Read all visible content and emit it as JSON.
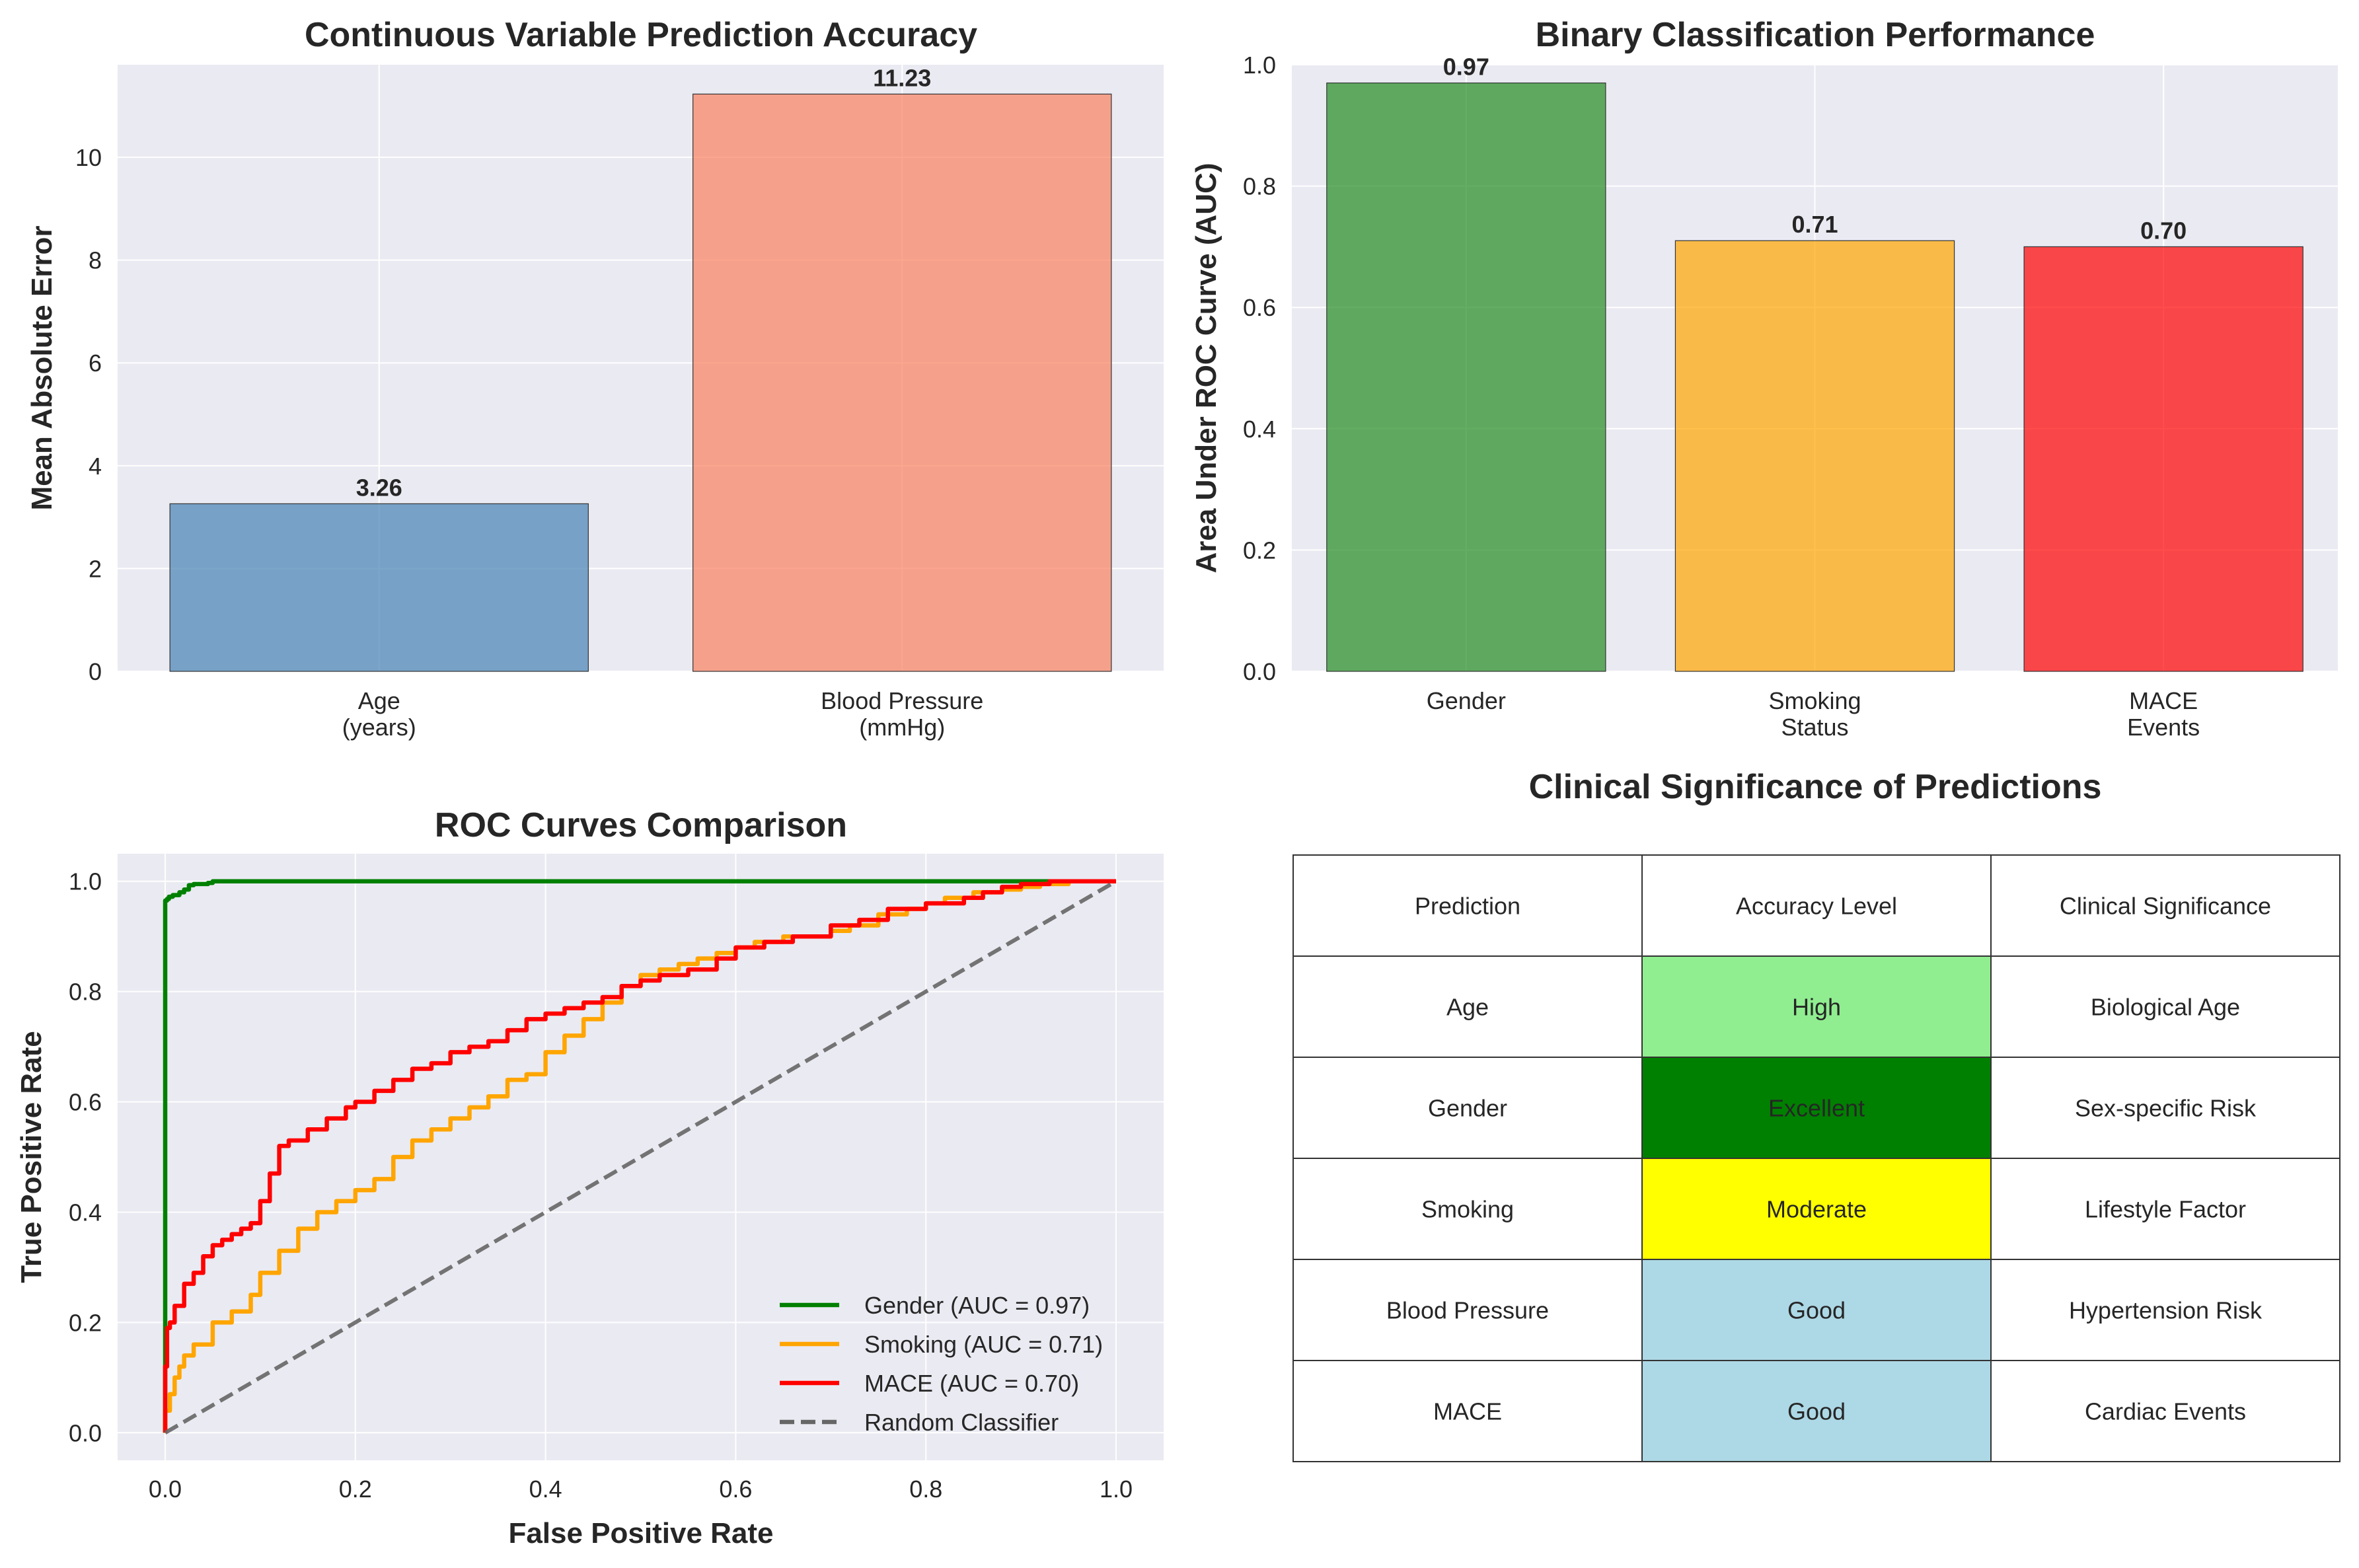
{
  "chart_data": [
    {
      "type": "bar",
      "title": "Continuous Variable Prediction Accuracy",
      "xlabel": "",
      "ylabel": "Mean Absolute Error",
      "categories": [
        "Age\n(years)",
        "Blood Pressure\n(mmHg)"
      ],
      "values": [
        3.26,
        11.23
      ],
      "value_labels": [
        "3.26",
        "11.23"
      ],
      "colors": [
        "#4682b4",
        "#fa8060"
      ],
      "ylim": [
        0,
        11.8
      ],
      "yticks": [
        0,
        2,
        4,
        6,
        8,
        10
      ],
      "grid": true
    },
    {
      "type": "bar",
      "title": "Binary Classification Performance",
      "xlabel": "",
      "ylabel": "Area Under ROC Curve (AUC)",
      "categories": [
        "Gender",
        "Smoking\nStatus",
        "MACE\nEvents"
      ],
      "values": [
        0.97,
        0.71,
        0.7
      ],
      "value_labels": [
        "0.97",
        "0.71",
        "0.70"
      ],
      "colors": [
        "#228b22",
        "#ffa500",
        "#ff0000"
      ],
      "ylim": [
        0,
        1.0
      ],
      "yticks": [
        "0.0",
        "0.2",
        "0.4",
        "0.6",
        "0.8",
        "1.0"
      ],
      "grid": true
    },
    {
      "type": "line",
      "title": "ROC Curves Comparison",
      "xlabel": "False Positive Rate",
      "ylabel": "True Positive Rate",
      "xlim": [
        -0.05,
        1.05
      ],
      "ylim": [
        -0.05,
        1.05
      ],
      "xticks": [
        "0.0",
        "0.2",
        "0.4",
        "0.6",
        "0.8",
        "1.0"
      ],
      "yticks": [
        "0.0",
        "0.2",
        "0.4",
        "0.6",
        "0.8",
        "1.0"
      ],
      "legend_position": "lower-right",
      "grid": true,
      "series": [
        {
          "name": "Gender (AUC = 0.97)",
          "color": "#008000",
          "dashed": false,
          "x": [
            0,
            0,
            0.002,
            0.004,
            0.008,
            0.015,
            0.02,
            0.025,
            0.03,
            0.045,
            0.05,
            0.06,
            0.07,
            1.0
          ],
          "y": [
            0,
            0.95,
            0.965,
            0.968,
            0.972,
            0.975,
            0.98,
            0.985,
            0.993,
            0.995,
            0.997,
            1.0,
            1.0,
            1.0
          ]
        },
        {
          "name": "Smoking (AUC = 0.71)",
          "color": "#ffa500",
          "dashed": false,
          "x": [
            0,
            0.005,
            0.01,
            0.015,
            0.02,
            0.03,
            0.05,
            0.07,
            0.09,
            0.1,
            0.12,
            0.14,
            0.16,
            0.18,
            0.2,
            0.22,
            0.24,
            0.26,
            0.28,
            0.3,
            0.32,
            0.34,
            0.36,
            0.38,
            0.4,
            0.42,
            0.44,
            0.46,
            0.48,
            0.5,
            0.52,
            0.54,
            0.56,
            0.58,
            0.6,
            0.62,
            0.65,
            0.68,
            0.7,
            0.72,
            0.75,
            0.78,
            0.8,
            0.82,
            0.85,
            0.88,
            0.9,
            0.92,
            0.95,
            1.0
          ],
          "y": [
            0,
            0.04,
            0.07,
            0.1,
            0.12,
            0.14,
            0.16,
            0.2,
            0.22,
            0.25,
            0.29,
            0.33,
            0.37,
            0.4,
            0.42,
            0.44,
            0.46,
            0.5,
            0.53,
            0.55,
            0.57,
            0.59,
            0.61,
            0.64,
            0.65,
            0.69,
            0.72,
            0.75,
            0.78,
            0.81,
            0.83,
            0.84,
            0.85,
            0.86,
            0.87,
            0.88,
            0.89,
            0.9,
            0.9,
            0.91,
            0.92,
            0.94,
            0.95,
            0.96,
            0.97,
            0.98,
            0.985,
            0.99,
            0.995,
            1.0
          ]
        },
        {
          "name": "MACE (AUC = 0.70)",
          "color": "#ff0000",
          "dashed": false,
          "x": [
            0,
            0.002,
            0.005,
            0.01,
            0.02,
            0.03,
            0.04,
            0.05,
            0.06,
            0.07,
            0.08,
            0.09,
            0.1,
            0.11,
            0.12,
            0.13,
            0.15,
            0.17,
            0.19,
            0.2,
            0.22,
            0.24,
            0.26,
            0.28,
            0.3,
            0.32,
            0.34,
            0.36,
            0.38,
            0.4,
            0.42,
            0.44,
            0.46,
            0.48,
            0.5,
            0.52,
            0.55,
            0.58,
            0.6,
            0.63,
            0.66,
            0.7,
            0.73,
            0.76,
            0.8,
            0.84,
            0.86,
            0.88,
            0.9,
            0.93,
            0.96,
            1.0
          ],
          "y": [
            0,
            0.12,
            0.19,
            0.2,
            0.23,
            0.27,
            0.29,
            0.32,
            0.34,
            0.35,
            0.36,
            0.37,
            0.38,
            0.42,
            0.47,
            0.52,
            0.53,
            0.55,
            0.57,
            0.59,
            0.6,
            0.62,
            0.64,
            0.66,
            0.67,
            0.69,
            0.7,
            0.71,
            0.73,
            0.75,
            0.76,
            0.77,
            0.78,
            0.79,
            0.81,
            0.82,
            0.83,
            0.84,
            0.86,
            0.88,
            0.89,
            0.9,
            0.92,
            0.93,
            0.95,
            0.96,
            0.97,
            0.98,
            0.99,
            0.995,
            1.0,
            1.0
          ]
        },
        {
          "name": "Random Classifier",
          "color": "#666666",
          "dashed": true,
          "x": [
            0,
            1
          ],
          "y": [
            0,
            1
          ]
        }
      ]
    },
    {
      "type": "table",
      "title": "Clinical Significance of Predictions",
      "columns": [
        "Prediction",
        "Accuracy Level",
        "Clinical Significance"
      ],
      "rows": [
        [
          "Age",
          "High",
          "Biological Age"
        ],
        [
          "Gender",
          "Excellent",
          "Sex-specific Risk"
        ],
        [
          "Smoking",
          "Moderate",
          "Lifestyle Factor"
        ],
        [
          "Blood Pressure",
          "Good",
          "Hypertension Risk"
        ],
        [
          "MACE",
          "Good",
          "Cardiac Events"
        ]
      ],
      "accuracy_colors": [
        "#90ee90",
        "#008000",
        "#ffff00",
        "#add8e6",
        "#add8e6"
      ]
    }
  ]
}
